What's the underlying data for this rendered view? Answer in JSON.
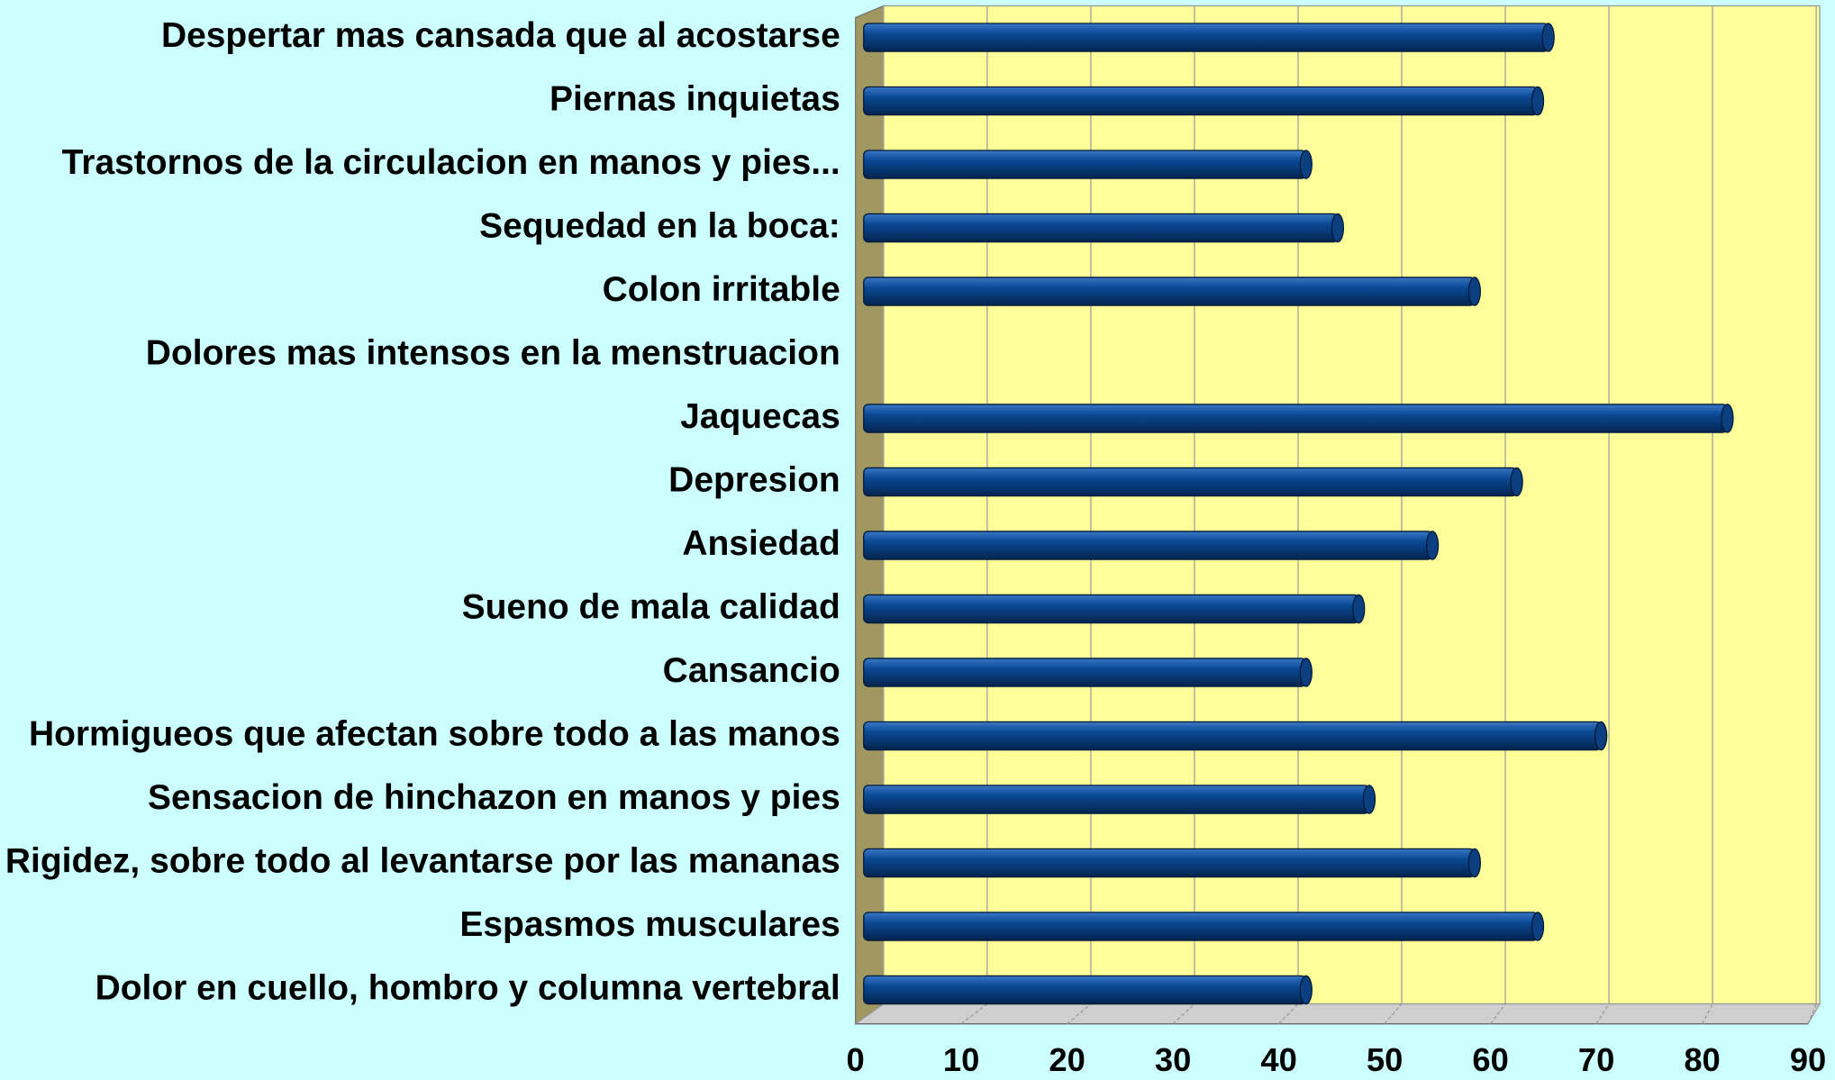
{
  "chart_data": {
    "type": "bar",
    "orientation": "horizontal",
    "categories": [
      "Despertar mas cansada que al acostarse",
      "Piernas inquietas",
      "Trastornos de la circulacion en manos y pies...",
      "Sequedad en la boca:",
      "Colon irritable",
      "Dolores mas intensos en la menstruacion",
      "Jaquecas",
      "Depresion",
      "Ansiedad",
      "Sueno de mala calidad",
      "Cansancio",
      "Hormigueos que afectan sobre todo a las manos",
      "Sensacion de hinchazon en manos y pies",
      "Rigidez, sobre todo al levantarse por las mananas",
      "Espasmos musculares",
      "Dolor en cuello, hombro y columna vertebral"
    ],
    "values": [
      65,
      64,
      42,
      45,
      58,
      null,
      82,
      62,
      54,
      47,
      42,
      70,
      48,
      58,
      64,
      42
    ],
    "color": "#0a4a96",
    "xlim": [
      0,
      90
    ],
    "xticks": [
      0,
      10,
      20,
      30,
      40,
      50,
      60,
      70,
      80,
      90
    ],
    "grid": true
  }
}
